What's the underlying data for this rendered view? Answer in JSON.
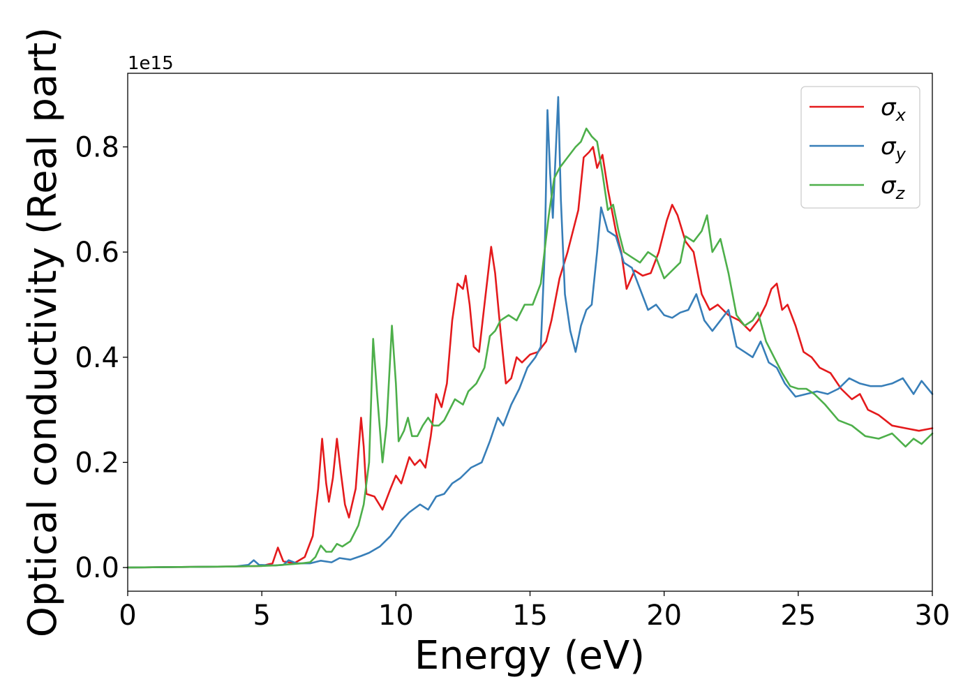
{
  "chart_data": {
    "type": "line",
    "title": "",
    "xlabel": "Energy (eV)",
    "ylabel": "Optical conductivity (Real part)",
    "offset_text": "1e15",
    "xlim": [
      0,
      30
    ],
    "ylim": [
      -0.045,
      0.94
    ],
    "xticks": [
      0,
      5,
      10,
      15,
      20,
      25,
      30
    ],
    "yticks": [
      0.0,
      0.2,
      0.4,
      0.6,
      0.8
    ],
    "ytick_labels": [
      "0.0",
      "0.2",
      "0.4",
      "0.6",
      "0.8"
    ],
    "grid": false,
    "legend_position": "top-right",
    "series": [
      {
        "name": "σx",
        "sym": "σ",
        "sub": "x",
        "color": "#e41a1c",
        "points": [
          [
            0,
            0
          ],
          [
            2,
            0.001
          ],
          [
            4,
            0.002
          ],
          [
            5,
            0.003
          ],
          [
            5.4,
            0.008
          ],
          [
            5.6,
            0.038
          ],
          [
            5.8,
            0.012
          ],
          [
            6.2,
            0.008
          ],
          [
            6.6,
            0.02
          ],
          [
            6.9,
            0.06
          ],
          [
            7.1,
            0.15
          ],
          [
            7.25,
            0.245
          ],
          [
            7.4,
            0.16
          ],
          [
            7.5,
            0.125
          ],
          [
            7.65,
            0.17
          ],
          [
            7.8,
            0.245
          ],
          [
            7.95,
            0.18
          ],
          [
            8.1,
            0.12
          ],
          [
            8.25,
            0.095
          ],
          [
            8.5,
            0.15
          ],
          [
            8.7,
            0.285
          ],
          [
            8.8,
            0.23
          ],
          [
            8.9,
            0.14
          ],
          [
            9.2,
            0.135
          ],
          [
            9.5,
            0.11
          ],
          [
            9.8,
            0.15
          ],
          [
            10.0,
            0.175
          ],
          [
            10.2,
            0.16
          ],
          [
            10.5,
            0.21
          ],
          [
            10.7,
            0.195
          ],
          [
            10.9,
            0.205
          ],
          [
            11.1,
            0.19
          ],
          [
            11.3,
            0.25
          ],
          [
            11.5,
            0.33
          ],
          [
            11.7,
            0.305
          ],
          [
            11.9,
            0.35
          ],
          [
            12.1,
            0.47
          ],
          [
            12.3,
            0.54
          ],
          [
            12.5,
            0.53
          ],
          [
            12.6,
            0.555
          ],
          [
            12.75,
            0.5
          ],
          [
            12.9,
            0.42
          ],
          [
            13.1,
            0.41
          ],
          [
            13.3,
            0.5
          ],
          [
            13.55,
            0.61
          ],
          [
            13.7,
            0.56
          ],
          [
            13.9,
            0.45
          ],
          [
            14.1,
            0.35
          ],
          [
            14.3,
            0.36
          ],
          [
            14.5,
            0.4
          ],
          [
            14.7,
            0.39
          ],
          [
            15.0,
            0.405
          ],
          [
            15.3,
            0.41
          ],
          [
            15.6,
            0.43
          ],
          [
            15.8,
            0.47
          ],
          [
            16.1,
            0.55
          ],
          [
            16.4,
            0.6
          ],
          [
            16.8,
            0.68
          ],
          [
            17.0,
            0.78
          ],
          [
            17.2,
            0.79
          ],
          [
            17.35,
            0.8
          ],
          [
            17.5,
            0.76
          ],
          [
            17.7,
            0.785
          ],
          [
            17.9,
            0.72
          ],
          [
            18.2,
            0.64
          ],
          [
            18.4,
            0.6
          ],
          [
            18.6,
            0.53
          ],
          [
            18.9,
            0.565
          ],
          [
            19.2,
            0.555
          ],
          [
            19.5,
            0.56
          ],
          [
            19.8,
            0.6
          ],
          [
            20.1,
            0.66
          ],
          [
            20.3,
            0.69
          ],
          [
            20.5,
            0.67
          ],
          [
            20.8,
            0.62
          ],
          [
            21.1,
            0.6
          ],
          [
            21.4,
            0.52
          ],
          [
            21.7,
            0.49
          ],
          [
            22.0,
            0.5
          ],
          [
            22.4,
            0.48
          ],
          [
            22.8,
            0.47
          ],
          [
            23.2,
            0.45
          ],
          [
            23.5,
            0.47
          ],
          [
            23.8,
            0.5
          ],
          [
            24.0,
            0.53
          ],
          [
            24.2,
            0.54
          ],
          [
            24.4,
            0.49
          ],
          [
            24.6,
            0.5
          ],
          [
            24.9,
            0.46
          ],
          [
            25.2,
            0.41
          ],
          [
            25.5,
            0.4
          ],
          [
            25.8,
            0.38
          ],
          [
            26.2,
            0.37
          ],
          [
            26.6,
            0.34
          ],
          [
            27.0,
            0.32
          ],
          [
            27.3,
            0.33
          ],
          [
            27.6,
            0.3
          ],
          [
            28.0,
            0.29
          ],
          [
            28.5,
            0.27
          ],
          [
            29.0,
            0.265
          ],
          [
            29.5,
            0.26
          ],
          [
            30.0,
            0.265
          ]
        ]
      },
      {
        "name": "σy",
        "sym": "σ",
        "sub": "y",
        "color": "#377eb8",
        "points": [
          [
            0,
            0
          ],
          [
            2,
            0.001
          ],
          [
            4,
            0.002
          ],
          [
            4.5,
            0.005
          ],
          [
            4.7,
            0.014
          ],
          [
            4.9,
            0.005
          ],
          [
            5.5,
            0.004
          ],
          [
            5.8,
            0.005
          ],
          [
            6.0,
            0.014
          ],
          [
            6.3,
            0.008
          ],
          [
            6.8,
            0.008
          ],
          [
            7.2,
            0.013
          ],
          [
            7.6,
            0.01
          ],
          [
            7.9,
            0.018
          ],
          [
            8.3,
            0.015
          ],
          [
            8.7,
            0.022
          ],
          [
            9.0,
            0.028
          ],
          [
            9.4,
            0.04
          ],
          [
            9.8,
            0.06
          ],
          [
            10.2,
            0.09
          ],
          [
            10.5,
            0.105
          ],
          [
            10.9,
            0.12
          ],
          [
            11.2,
            0.11
          ],
          [
            11.5,
            0.135
          ],
          [
            11.8,
            0.14
          ],
          [
            12.1,
            0.16
          ],
          [
            12.4,
            0.17
          ],
          [
            12.8,
            0.19
          ],
          [
            13.2,
            0.2
          ],
          [
            13.5,
            0.24
          ],
          [
            13.8,
            0.285
          ],
          [
            14.0,
            0.27
          ],
          [
            14.3,
            0.31
          ],
          [
            14.6,
            0.34
          ],
          [
            14.9,
            0.38
          ],
          [
            15.2,
            0.4
          ],
          [
            15.4,
            0.42
          ],
          [
            15.55,
            0.6
          ],
          [
            15.65,
            0.87
          ],
          [
            15.75,
            0.75
          ],
          [
            15.85,
            0.665
          ],
          [
            15.95,
            0.78
          ],
          [
            16.05,
            0.895
          ],
          [
            16.15,
            0.7
          ],
          [
            16.3,
            0.52
          ],
          [
            16.5,
            0.45
          ],
          [
            16.7,
            0.41
          ],
          [
            16.9,
            0.46
          ],
          [
            17.1,
            0.49
          ],
          [
            17.3,
            0.5
          ],
          [
            17.5,
            0.6
          ],
          [
            17.65,
            0.685
          ],
          [
            17.9,
            0.64
          ],
          [
            18.2,
            0.63
          ],
          [
            18.5,
            0.58
          ],
          [
            18.8,
            0.57
          ],
          [
            19.1,
            0.53
          ],
          [
            19.4,
            0.49
          ],
          [
            19.7,
            0.5
          ],
          [
            20.0,
            0.48
          ],
          [
            20.3,
            0.475
          ],
          [
            20.6,
            0.485
          ],
          [
            20.9,
            0.49
          ],
          [
            21.2,
            0.52
          ],
          [
            21.5,
            0.47
          ],
          [
            21.8,
            0.45
          ],
          [
            22.1,
            0.47
          ],
          [
            22.4,
            0.49
          ],
          [
            22.7,
            0.42
          ],
          [
            23.0,
            0.41
          ],
          [
            23.3,
            0.4
          ],
          [
            23.6,
            0.43
          ],
          [
            23.9,
            0.39
          ],
          [
            24.2,
            0.38
          ],
          [
            24.5,
            0.35
          ],
          [
            24.9,
            0.325
          ],
          [
            25.3,
            0.33
          ],
          [
            25.7,
            0.335
          ],
          [
            26.1,
            0.33
          ],
          [
            26.5,
            0.34
          ],
          [
            26.9,
            0.36
          ],
          [
            27.3,
            0.35
          ],
          [
            27.7,
            0.345
          ],
          [
            28.1,
            0.345
          ],
          [
            28.5,
            0.35
          ],
          [
            28.9,
            0.36
          ],
          [
            29.3,
            0.33
          ],
          [
            29.6,
            0.355
          ],
          [
            30.0,
            0.33
          ]
        ]
      },
      {
        "name": "σz",
        "sym": "σ",
        "sub": "z",
        "color": "#4daf4a",
        "points": [
          [
            0,
            0
          ],
          [
            2,
            0.001
          ],
          [
            4,
            0.002
          ],
          [
            5,
            0.003
          ],
          [
            5.5,
            0.004
          ],
          [
            6.0,
            0.006
          ],
          [
            6.5,
            0.008
          ],
          [
            6.8,
            0.01
          ],
          [
            7.0,
            0.02
          ],
          [
            7.2,
            0.042
          ],
          [
            7.4,
            0.03
          ],
          [
            7.6,
            0.03
          ],
          [
            7.8,
            0.045
          ],
          [
            8.0,
            0.04
          ],
          [
            8.3,
            0.05
          ],
          [
            8.6,
            0.08
          ],
          [
            8.8,
            0.12
          ],
          [
            9.0,
            0.2
          ],
          [
            9.15,
            0.435
          ],
          [
            9.3,
            0.33
          ],
          [
            9.5,
            0.2
          ],
          [
            9.65,
            0.27
          ],
          [
            9.85,
            0.46
          ],
          [
            10.0,
            0.35
          ],
          [
            10.1,
            0.24
          ],
          [
            10.3,
            0.26
          ],
          [
            10.45,
            0.285
          ],
          [
            10.6,
            0.25
          ],
          [
            10.8,
            0.25
          ],
          [
            11.0,
            0.27
          ],
          [
            11.2,
            0.285
          ],
          [
            11.4,
            0.27
          ],
          [
            11.6,
            0.27
          ],
          [
            11.8,
            0.28
          ],
          [
            12.0,
            0.3
          ],
          [
            12.2,
            0.32
          ],
          [
            12.5,
            0.31
          ],
          [
            12.7,
            0.335
          ],
          [
            13.0,
            0.35
          ],
          [
            13.3,
            0.38
          ],
          [
            13.5,
            0.44
          ],
          [
            13.7,
            0.45
          ],
          [
            13.9,
            0.47
          ],
          [
            14.2,
            0.48
          ],
          [
            14.5,
            0.47
          ],
          [
            14.8,
            0.5
          ],
          [
            15.1,
            0.5
          ],
          [
            15.4,
            0.54
          ],
          [
            15.7,
            0.67
          ],
          [
            15.9,
            0.74
          ],
          [
            16.1,
            0.76
          ],
          [
            16.4,
            0.78
          ],
          [
            16.7,
            0.8
          ],
          [
            16.9,
            0.81
          ],
          [
            17.1,
            0.835
          ],
          [
            17.3,
            0.82
          ],
          [
            17.5,
            0.81
          ],
          [
            17.7,
            0.75
          ],
          [
            17.9,
            0.68
          ],
          [
            18.1,
            0.69
          ],
          [
            18.3,
            0.64
          ],
          [
            18.5,
            0.6
          ],
          [
            18.8,
            0.59
          ],
          [
            19.1,
            0.58
          ],
          [
            19.4,
            0.6
          ],
          [
            19.7,
            0.59
          ],
          [
            20.0,
            0.55
          ],
          [
            20.3,
            0.565
          ],
          [
            20.6,
            0.58
          ],
          [
            20.8,
            0.63
          ],
          [
            21.1,
            0.62
          ],
          [
            21.4,
            0.64
          ],
          [
            21.6,
            0.67
          ],
          [
            21.8,
            0.6
          ],
          [
            22.1,
            0.625
          ],
          [
            22.4,
            0.56
          ],
          [
            22.7,
            0.48
          ],
          [
            23.0,
            0.46
          ],
          [
            23.3,
            0.47
          ],
          [
            23.5,
            0.485
          ],
          [
            23.8,
            0.43
          ],
          [
            24.1,
            0.4
          ],
          [
            24.4,
            0.37
          ],
          [
            24.7,
            0.345
          ],
          [
            25.0,
            0.34
          ],
          [
            25.3,
            0.34
          ],
          [
            25.6,
            0.33
          ],
          [
            26.0,
            0.31
          ],
          [
            26.5,
            0.28
          ],
          [
            27.0,
            0.27
          ],
          [
            27.5,
            0.25
          ],
          [
            28.0,
            0.245
          ],
          [
            28.5,
            0.255
          ],
          [
            29.0,
            0.23
          ],
          [
            29.3,
            0.245
          ],
          [
            29.6,
            0.235
          ],
          [
            30.0,
            0.255
          ]
        ]
      }
    ]
  }
}
